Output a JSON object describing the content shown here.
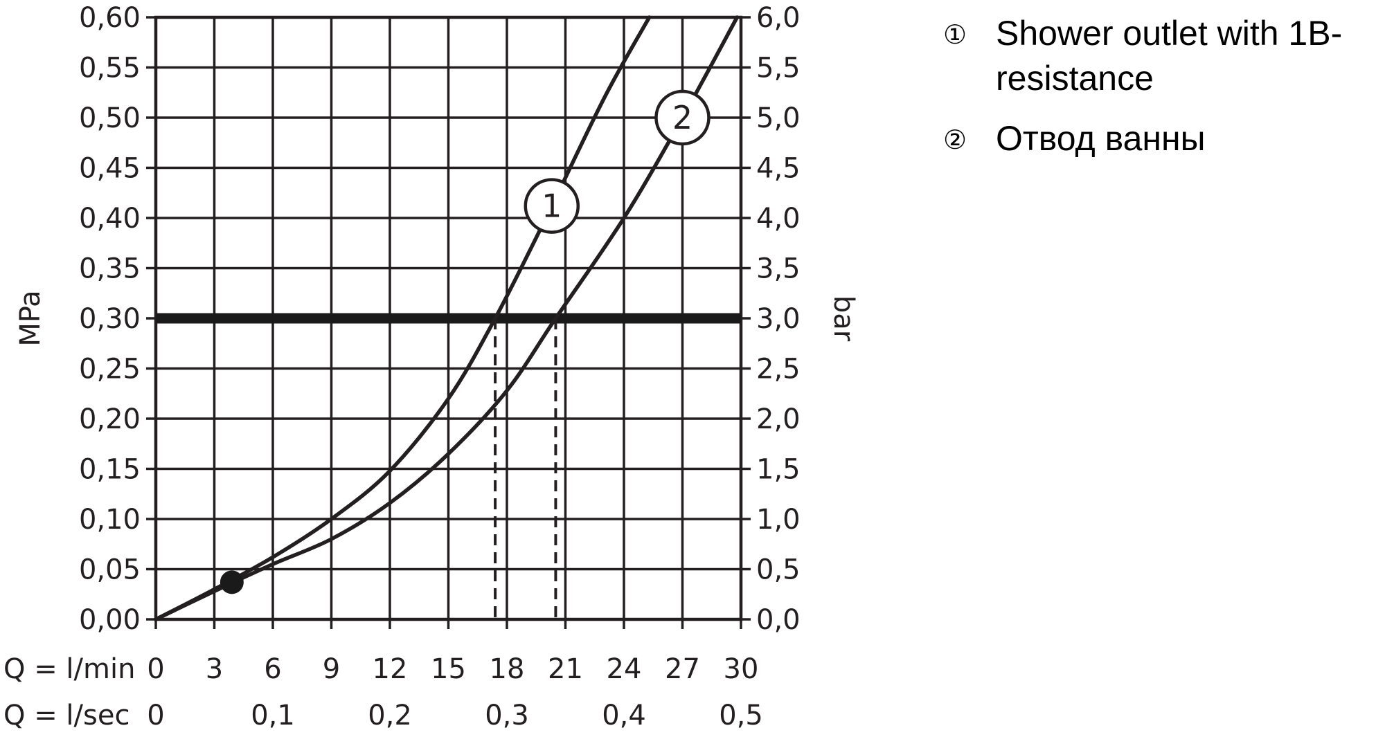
{
  "chart_data": {
    "type": "line",
    "ylabel_left": "MPa",
    "ylabel_right": "bar",
    "x_row1_label": "Q = l/min",
    "x_row2_label": "Q = l/sec",
    "x_ticks_lmin": [
      "0",
      "3",
      "6",
      "9",
      "12",
      "15",
      "18",
      "21",
      "24",
      "27",
      "30"
    ],
    "x_ticks_lsec": [
      "0",
      "0,1",
      "0,2",
      "0,3",
      "0,4",
      "0,5"
    ],
    "y_ticks_mpa": [
      "0,00",
      "0,05",
      "0,10",
      "0,15",
      "0,20",
      "0,25",
      "0,30",
      "0,35",
      "0,40",
      "0,45",
      "0,50",
      "0,55",
      "0,60"
    ],
    "y_ticks_bar": [
      "0,0",
      "0,5",
      "1,0",
      "1,5",
      "2,0",
      "2,5",
      "3,0",
      "3,5",
      "4,0",
      "4,5",
      "5,0",
      "5,5",
      "6,0"
    ],
    "xlim": [
      0,
      30
    ],
    "ylim": [
      0,
      0.6
    ],
    "grid": true,
    "reference_line_mpa": 0.3,
    "marker_point": {
      "x": 3.9,
      "y": 0.037
    },
    "series": [
      {
        "callout": "1",
        "legend_mark": "①",
        "legend": "Shower outlet with 1B-resistance",
        "x": [
          0,
          3,
          6,
          9,
          12,
          15,
          17.4,
          20,
          23,
          25.3
        ],
        "y": [
          0,
          0.03,
          0.062,
          0.1,
          0.148,
          0.22,
          0.3,
          0.4,
          0.52,
          0.6
        ],
        "dashed_drop_x": 17.4
      },
      {
        "callout": "2",
        "legend_mark": "②",
        "legend": "Отвод ванны",
        "x": [
          0,
          3,
          6,
          9,
          12,
          15,
          18,
          20.5,
          24,
          27,
          29.8
        ],
        "y": [
          0,
          0.028,
          0.055,
          0.08,
          0.116,
          0.165,
          0.228,
          0.3,
          0.4,
          0.5,
          0.6
        ],
        "dashed_drop_x": 20.5
      }
    ],
    "legend_lines": [
      {
        "mark": "①",
        "lines": [
          "Shower outlet with 1B-",
          "resistance"
        ]
      },
      {
        "mark": "②",
        "lines": [
          "Отвод ванны"
        ]
      }
    ]
  }
}
